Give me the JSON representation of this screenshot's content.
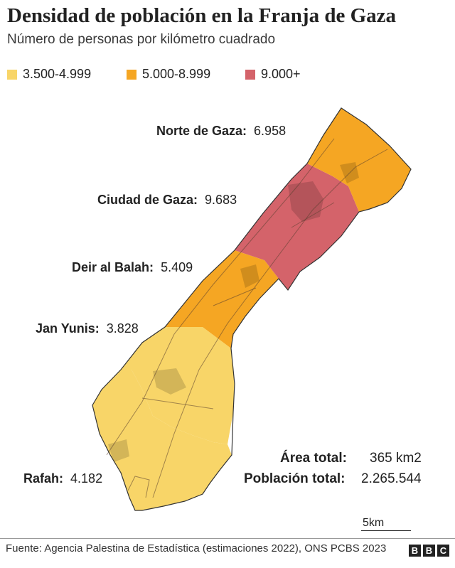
{
  "header": {
    "title": "Densidad de población en la Franja de Gaza",
    "subtitle": "Número de personas por kilómetro cuadrado"
  },
  "legend": [
    {
      "label": "3.500-4.999",
      "color": "#f8d568"
    },
    {
      "label": "5.000-8.999",
      "color": "#f5a623"
    },
    {
      "label": "9.000+",
      "color": "#d4636a"
    }
  ],
  "regions": [
    {
      "name": "Norte de Gaza:",
      "value": "6.958",
      "color": "#f5a623"
    },
    {
      "name": "Ciudad de Gaza:",
      "value": "9.683",
      "color": "#d4636a"
    },
    {
      "name": "Deir al Balah:",
      "value": "5.409",
      "color": "#f5a623"
    },
    {
      "name": "Jan Yunis:",
      "value": "3.828",
      "color": "#f8d568"
    },
    {
      "name": "Rafah:",
      "value": "4.182",
      "color": "#f8d568"
    }
  ],
  "totals": {
    "area_label": "Área total:",
    "area_value": "365 km2",
    "population_label": "Población total:",
    "population_value": "2.265.544"
  },
  "scale": {
    "label": "5km"
  },
  "footer": {
    "source": "Fuente: Agencia Palestina de Estadística (estimaciones 2022), ONS PCBS 2023",
    "brand": [
      "B",
      "B",
      "C"
    ]
  }
}
